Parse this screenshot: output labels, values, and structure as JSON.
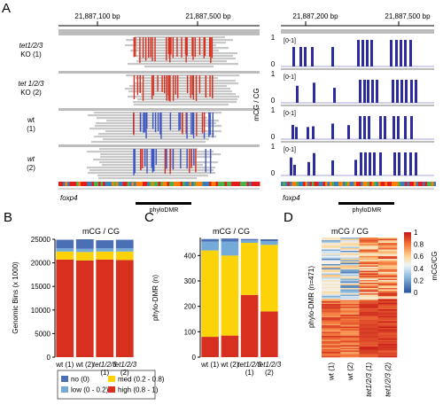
{
  "panel_letters": {
    "a": "A",
    "b": "B",
    "c": "C",
    "d": "D"
  },
  "panel_a": {
    "left_coords": [
      "21,887,100 bp",
      "21,887,500 bp"
    ],
    "right_coords": [
      "21,887,200 bp",
      "21,887,500 bp"
    ],
    "left_tracks": [
      {
        "l1": "tet1/2/3",
        "l2": "KO (1)",
        "italic1": true
      },
      {
        "l1": "tet 1/2/3",
        "l2": "KO (2)",
        "italic1": true
      },
      {
        "l1": "wt",
        "l2": "(1)",
        "italic1": false
      },
      {
        "l1": "wt",
        "l2": "(2)",
        "italic1": true
      }
    ],
    "right_ylabel": "mCG / CG",
    "right_range": "[0-1]",
    "right_ticks": [
      "1",
      "0"
    ],
    "gene": "foxp4",
    "region": "phyloDMR"
  },
  "chart_data": [
    {
      "type": "bar",
      "stacked": true,
      "title": "mCG / CG",
      "ylabel": "Genomic Bins (x 1000)",
      "ylim": [
        0,
        25000
      ],
      "yticks": [
        "0",
        "5000",
        "10000",
        "15000",
        "20000",
        "25000"
      ],
      "categories": [
        [
          "wt (1)"
        ],
        [
          "wt (2)"
        ],
        [
          "tet1/2/3",
          "(1)"
        ],
        [
          "tet1/2/3",
          "(2)"
        ]
      ],
      "series": [
        {
          "name": "high (0.8 - 1)",
          "color": "#d7301f",
          "values": [
            20700,
            20500,
            20700,
            20600
          ]
        },
        {
          "name": "med (0.2 - 0.8)",
          "color": "#fcd208",
          "values": [
            1700,
            1800,
            1700,
            1800
          ]
        },
        {
          "name": "low (0 - 0.2)",
          "color": "#74aad8",
          "values": [
            700,
            700,
            700,
            700
          ]
        },
        {
          "name": "no (0)",
          "color": "#4a6fb5",
          "values": [
            1800,
            2000,
            1700,
            1800
          ]
        }
      ],
      "legend_position": "bottom"
    },
    {
      "type": "bar",
      "stacked": true,
      "title": "mCG / CG",
      "ylabel": "phylo-DMR (n)",
      "ylim": [
        0,
        471
      ],
      "yticks": [
        "0",
        "100",
        "200",
        "300",
        "400"
      ],
      "categories": [
        [
          "wt (1)"
        ],
        [
          "wt (2)"
        ],
        [
          "tet1/2/3",
          "(1)"
        ],
        [
          "tet1/2/3",
          "(2)"
        ]
      ],
      "series": [
        {
          "name": "high (0.8 - 1)",
          "color": "#d7301f",
          "values": [
            80,
            85,
            245,
            180
          ]
        },
        {
          "name": "med (0.2 - 0.8)",
          "color": "#fcd208",
          "values": [
            340,
            315,
            205,
            262
          ]
        },
        {
          "name": "low (0 - 0.2)",
          "color": "#74aad8",
          "values": [
            35,
            55,
            10,
            15
          ]
        },
        {
          "name": "no (0)",
          "color": "#4a6fb5",
          "values": [
            10,
            12,
            5,
            7
          ]
        }
      ]
    },
    {
      "type": "heatmap",
      "title": "mCG / CG",
      "ylabel": "phylo-DMR (n=471)",
      "columns": [
        "wt (1)",
        "wt (2)",
        "tet1/2/3 (1)",
        "tet1/2/3 (2)"
      ],
      "colorbar_label": "mCG/CG",
      "colorbar_ticks": [
        "1",
        "0.8",
        "0.6",
        "0.4",
        "0.2",
        "0"
      ]
    }
  ],
  "legend": [
    {
      "label": "no (0)",
      "color": "#4a6fb5"
    },
    {
      "label": "med (0.2 - 0.8)",
      "color": "#fcd208"
    },
    {
      "label": "low (0 - 0.2)",
      "color": "#74aad8"
    },
    {
      "label": "high (0.8 - 1)",
      "color": "#d7301f"
    }
  ]
}
